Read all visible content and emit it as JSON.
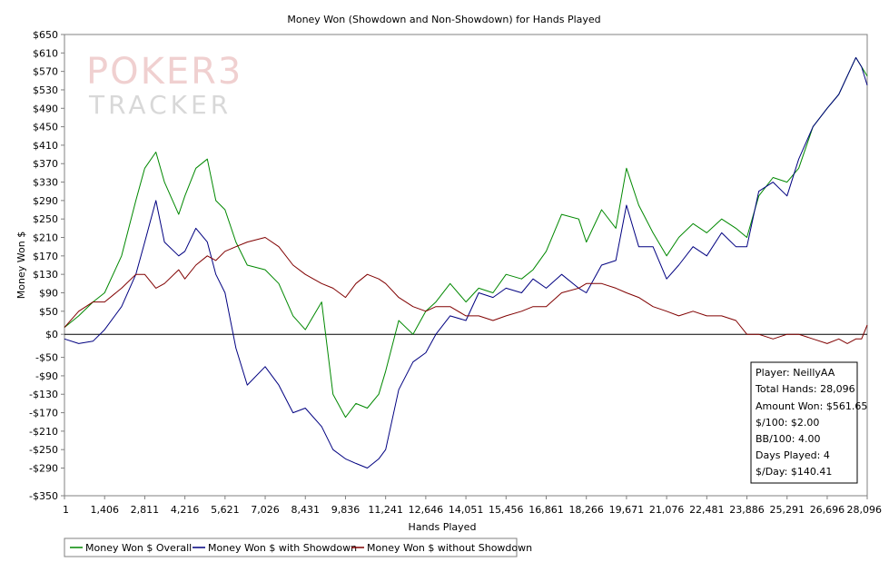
{
  "chart_data": {
    "type": "line",
    "title": "Money Won (Showdown and Non-Showdown) for Hands Played",
    "xlabel": "Hands Played",
    "ylabel": "Money Won $",
    "xlim": [
      1,
      28096
    ],
    "ylim": [
      -350,
      650
    ],
    "x_ticks": [
      1,
      1406,
      2811,
      4216,
      5621,
      7026,
      8431,
      9836,
      11241,
      12646,
      14051,
      15456,
      16861,
      18266,
      19671,
      21076,
      22481,
      23886,
      25291,
      26696,
      28096
    ],
    "x_tick_labels": [
      "1",
      "1,406",
      "2,811",
      "4,216",
      "5,621",
      "7,026",
      "8,431",
      "9,836",
      "11,241",
      "12,646",
      "14,051",
      "15,456",
      "16,861",
      "18,266",
      "19,671",
      "21,076",
      "22,481",
      "23,886",
      "25,291",
      "26,696",
      "28,096"
    ],
    "y_ticks": [
      650,
      610,
      570,
      530,
      490,
      450,
      410,
      370,
      330,
      290,
      250,
      210,
      170,
      130,
      90,
      50,
      0,
      -50,
      -90,
      -130,
      -170,
      -210,
      -250,
      -290,
      -350
    ],
    "y_tick_labels": [
      "$650",
      "$610",
      "$570",
      "$530",
      "$490",
      "$450",
      "$410",
      "$370",
      "$330",
      "$290",
      "$250",
      "$210",
      "$170",
      "$130",
      "$90",
      "$50",
      "$0",
      "-$50",
      "-$90",
      "-$130",
      "-$170",
      "-$210",
      "-$250",
      "-$290",
      "-$350"
    ],
    "x": [
      1,
      500,
      1000,
      1406,
      2000,
      2500,
      2811,
      3200,
      3500,
      4000,
      4216,
      4600,
      5000,
      5300,
      5621,
      6000,
      6400,
      7026,
      7500,
      8000,
      8431,
      9000,
      9400,
      9836,
      10200,
      10600,
      11000,
      11241,
      11700,
      12200,
      12646,
      13000,
      13500,
      14051,
      14500,
      15000,
      15456,
      16000,
      16400,
      16861,
      17400,
      18000,
      18266,
      18800,
      19300,
      19671,
      20100,
      20600,
      21076,
      21500,
      22000,
      22481,
      23000,
      23500,
      23886,
      24300,
      24800,
      25291,
      25700,
      26200,
      26696,
      27100,
      27400,
      27700,
      27900,
      28096
    ],
    "series": [
      {
        "name": "Money Won $ Overall",
        "color": "#008800",
        "values": [
          15,
          40,
          70,
          90,
          170,
          290,
          360,
          395,
          330,
          260,
          300,
          360,
          380,
          290,
          270,
          200,
          150,
          140,
          110,
          40,
          10,
          70,
          -130,
          -180,
          -150,
          -160,
          -130,
          -80,
          30,
          0,
          50,
          70,
          110,
          70,
          100,
          90,
          130,
          120,
          140,
          180,
          260,
          250,
          200,
          270,
          230,
          360,
          280,
          220,
          170,
          210,
          240,
          220,
          250,
          230,
          210,
          300,
          340,
          330,
          360,
          450,
          490,
          520,
          560,
          600,
          580,
          560
        ]
      },
      {
        "name": "Money Won $ with Showdown",
        "color": "#000080",
        "values": [
          -10,
          -20,
          -15,
          10,
          60,
          130,
          200,
          290,
          200,
          170,
          180,
          230,
          200,
          130,
          90,
          -30,
          -110,
          -70,
          -110,
          -170,
          -160,
          -200,
          -250,
          -270,
          -280,
          -290,
          -270,
          -250,
          -120,
          -60,
          -40,
          0,
          40,
          30,
          90,
          80,
          100,
          90,
          120,
          100,
          130,
          100,
          90,
          150,
          160,
          280,
          190,
          190,
          120,
          150,
          190,
          170,
          220,
          190,
          190,
          310,
          330,
          300,
          380,
          450,
          490,
          520,
          560,
          600,
          580,
          540
        ]
      },
      {
        "name": "Money Won $ without Showdown",
        "color": "#800000",
        "values": [
          15,
          50,
          70,
          70,
          100,
          130,
          130,
          100,
          110,
          140,
          120,
          150,
          170,
          160,
          180,
          190,
          200,
          210,
          190,
          150,
          130,
          110,
          100,
          80,
          110,
          130,
          120,
          110,
          80,
          60,
          50,
          60,
          60,
          40,
          40,
          30,
          40,
          50,
          60,
          60,
          90,
          100,
          110,
          110,
          100,
          90,
          80,
          60,
          50,
          40,
          50,
          40,
          40,
          30,
          0,
          0,
          -10,
          0,
          0,
          -10,
          -20,
          -10,
          -20,
          -10,
          -10,
          20
        ]
      }
    ],
    "legend_position": "bottom-left",
    "grid": false,
    "stats": {
      "player": "Player: NeillyAA",
      "total_hands": "Total Hands: 28,096",
      "amount_won": "Amount Won: $561.65",
      "per_100": "$/100: $2.00",
      "bb_per_100": "BB/100: 4.00",
      "days_played": "Days Played: 4",
      "per_day": "$/Day: $140.41"
    }
  },
  "watermark": {
    "line1": "POKER3",
    "line2": "TRACKER"
  }
}
